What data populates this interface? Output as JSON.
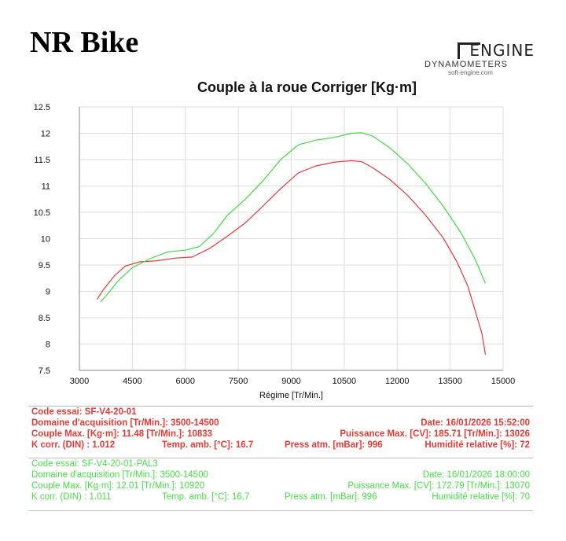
{
  "brand": "NR Bike",
  "logo": {
    "word": "ENGINE",
    "sub": "DYNAMOMETERS",
    "site": "soft-engine.com"
  },
  "colors": {
    "run1": "#e53935",
    "run2": "#3ddc3d",
    "grid": "#dddddd"
  },
  "chart_data": {
    "type": "line",
    "title": "Couple à la roue Corriger [Kg·m]",
    "xlabel": "Régime [Tr/Min.]",
    "ylabel": "",
    "xlim": [
      3000,
      15000
    ],
    "ylim": [
      7.5,
      12.5
    ],
    "xticks": [
      3000,
      4500,
      6000,
      7500,
      9000,
      10500,
      12000,
      13500,
      15000
    ],
    "yticks": [
      7.5,
      8,
      8.5,
      9,
      9.5,
      10,
      10.5,
      11,
      11.5,
      12,
      12.5
    ],
    "grid": true,
    "series": [
      {
        "name": "SF-V4-20-01",
        "color": "#e53935",
        "x": [
          3500,
          3700,
          4000,
          4300,
          4700,
          5200,
          5700,
          6200,
          6700,
          7200,
          7700,
          8200,
          8700,
          9200,
          9700,
          10200,
          10700,
          11000,
          11300,
          11800,
          12300,
          12800,
          13300,
          13700,
          14000,
          14200,
          14400,
          14500
        ],
        "y": [
          8.85,
          9.05,
          9.3,
          9.48,
          9.56,
          9.58,
          9.63,
          9.65,
          9.82,
          10.05,
          10.3,
          10.62,
          10.95,
          11.25,
          11.38,
          11.45,
          11.48,
          11.46,
          11.35,
          11.12,
          10.82,
          10.45,
          10.02,
          9.55,
          9.1,
          8.65,
          8.2,
          7.8
        ]
      },
      {
        "name": "SF-V4-20-01-PAL3",
        "color": "#3ddc3d",
        "x": [
          3600,
          3800,
          4100,
          4500,
          5000,
          5500,
          6000,
          6400,
          6800,
          7200,
          7700,
          8200,
          8700,
          9200,
          9700,
          10200,
          10700,
          11000,
          11300,
          11800,
          12300,
          12800,
          13300,
          13800,
          14200,
          14500
        ],
        "y": [
          8.8,
          8.95,
          9.2,
          9.45,
          9.62,
          9.75,
          9.78,
          9.85,
          10.1,
          10.45,
          10.75,
          11.1,
          11.5,
          11.78,
          11.87,
          11.92,
          12.0,
          12.01,
          11.95,
          11.72,
          11.42,
          11.05,
          10.62,
          10.12,
          9.62,
          9.15
        ]
      }
    ]
  },
  "run1": {
    "code": "Code essai: SF-V4-20-01",
    "domain": "Domaine d'acquisition [Tr/Min.]: 3500-14500",
    "date": "Date: 16/01/2026   15:52:00",
    "couple": "Couple Max. [Kg·m]: 11.48   [Tr/Min.]: 10833",
    "power": "Puissance Max. [CV]: 185.71   [Tr/Min.]: 13026",
    "kcorr": "K corr. (DIN) : 1.012",
    "temp": "Temp. amb. [°C]: 16.7",
    "press": "Press atm. [mBar]: 996",
    "humid": "Humidité relative [%]: 72"
  },
  "run2": {
    "code": "Code essai: SF-V4-20-01-PAL3",
    "domain": "Domaine d'acquisition [Tr/Min.]: 3500-14500",
    "date": "Date: 16/01/2026   18:00:00",
    "couple": "Couple Max. [Kg·m]: 12.01   [Tr/Min.]: 10920",
    "power": "Puissance Max. [CV]: 172.79   [Tr/Min.]: 13070",
    "kcorr": "K corr. (DIN) : 1.011",
    "temp": "Temp. amb. [°C]: 16.7",
    "press": "Press atm. [mBar]: 996",
    "humid": "Humidité relative [%]: 70"
  }
}
